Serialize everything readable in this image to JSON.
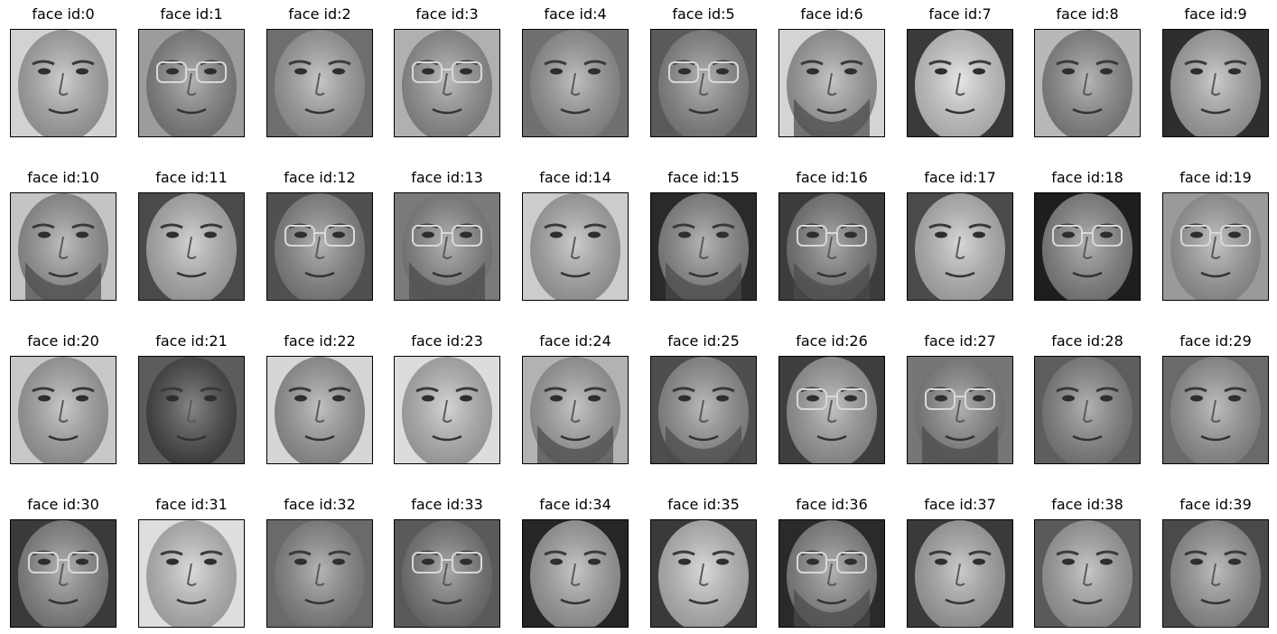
{
  "faces": [
    {
      "title": "face id:0",
      "tone": "#b4b4b4",
      "bg": "#d2d2d2",
      "glasses": false,
      "beard": false
    },
    {
      "title": "face id:1",
      "tone": "#8a8a8a",
      "bg": "#9c9c9c",
      "glasses": true,
      "beard": false
    },
    {
      "title": "face id:2",
      "tone": "#a8a8a8",
      "bg": "#6e6e6e",
      "glasses": false,
      "beard": false
    },
    {
      "title": "face id:3",
      "tone": "#9a9a9a",
      "bg": "#b0b0b0",
      "glasses": true,
      "beard": false
    },
    {
      "title": "face id:4",
      "tone": "#9e9e9e",
      "bg": "#707070",
      "glasses": false,
      "beard": false
    },
    {
      "title": "face id:5",
      "tone": "#8e8e8e",
      "bg": "#5a5a5a",
      "glasses": true,
      "beard": false
    },
    {
      "title": "face id:6",
      "tone": "#a6a6a6",
      "bg": "#d4d4d4",
      "glasses": false,
      "beard": true
    },
    {
      "title": "face id:7",
      "tone": "#d8d8d8",
      "bg": "#3a3a3a",
      "glasses": false,
      "beard": false
    },
    {
      "title": "face id:8",
      "tone": "#909090",
      "bg": "#b8b8b8",
      "glasses": false,
      "beard": false
    },
    {
      "title": "face id:9",
      "tone": "#b0b0b0",
      "bg": "#2e2e2e",
      "glasses": false,
      "beard": false
    },
    {
      "title": "face id:10",
      "tone": "#9c9c9c",
      "bg": "#c4c4c4",
      "glasses": false,
      "beard": true
    },
    {
      "title": "face id:11",
      "tone": "#bcbcbc",
      "bg": "#4a4a4a",
      "glasses": false,
      "beard": false
    },
    {
      "title": "face id:12",
      "tone": "#8c8c8c",
      "bg": "#505050",
      "glasses": true,
      "beard": false
    },
    {
      "title": "face id:13",
      "tone": "#8a8a8a",
      "bg": "#7a7a7a",
      "glasses": true,
      "beard": true
    },
    {
      "title": "face id:14",
      "tone": "#b2b2b2",
      "bg": "#cccccc",
      "glasses": false,
      "beard": false
    },
    {
      "title": "face id:15",
      "tone": "#8e8e8e",
      "bg": "#2a2a2a",
      "glasses": false,
      "beard": true
    },
    {
      "title": "face id:16",
      "tone": "#7e7e7e",
      "bg": "#3c3c3c",
      "glasses": true,
      "beard": true
    },
    {
      "title": "face id:17",
      "tone": "#c2c2c2",
      "bg": "#4a4a4a",
      "glasses": false,
      "beard": false
    },
    {
      "title": "face id:18",
      "tone": "#8a8a8a",
      "bg": "#1e1e1e",
      "glasses": true,
      "beard": false
    },
    {
      "title": "face id:19",
      "tone": "#a4a4a4",
      "bg": "#9a9a9a",
      "glasses": true,
      "beard": false
    },
    {
      "title": "face id:20",
      "tone": "#acacac",
      "bg": "#c8c8c8",
      "glasses": false,
      "beard": false
    },
    {
      "title": "face id:21",
      "tone": "#454545",
      "bg": "#5c5c5c",
      "glasses": false,
      "beard": false
    },
    {
      "title": "face id:22",
      "tone": "#a0a0a0",
      "bg": "#d6d6d6",
      "glasses": false,
      "beard": false
    },
    {
      "title": "face id:23",
      "tone": "#bebebe",
      "bg": "#dcdcdc",
      "glasses": false,
      "beard": false
    },
    {
      "title": "face id:24",
      "tone": "#a6a6a6",
      "bg": "#b2b2b2",
      "glasses": false,
      "beard": true
    },
    {
      "title": "face id:25",
      "tone": "#969696",
      "bg": "#4e4e4e",
      "glasses": false,
      "beard": true
    },
    {
      "title": "face id:26",
      "tone": "#a2a2a2",
      "bg": "#3e3e3e",
      "glasses": true,
      "beard": false
    },
    {
      "title": "face id:27",
      "tone": "#888888",
      "bg": "#767676",
      "glasses": true,
      "beard": true
    },
    {
      "title": "face id:28",
      "tone": "#8a8a8a",
      "bg": "#5e5e5e",
      "glasses": false,
      "beard": false
    },
    {
      "title": "face id:29",
      "tone": "#9c9c9c",
      "bg": "#6a6a6a",
      "glasses": false,
      "beard": false
    },
    {
      "title": "face id:30",
      "tone": "#8c8c8c",
      "bg": "#3a3a3a",
      "glasses": true,
      "beard": false
    },
    {
      "title": "face id:31",
      "tone": "#c8c8c8",
      "bg": "#dedede",
      "glasses": false,
      "beard": false
    },
    {
      "title": "face id:32",
      "tone": "#8e8e8e",
      "bg": "#6a6a6a",
      "glasses": false,
      "beard": false
    },
    {
      "title": "face id:33",
      "tone": "#7c7c7c",
      "bg": "#5a5a5a",
      "glasses": true,
      "beard": false
    },
    {
      "title": "face id:34",
      "tone": "#a8a8a8",
      "bg": "#262626",
      "glasses": false,
      "beard": false
    },
    {
      "title": "face id:35",
      "tone": "#c6c6c6",
      "bg": "#3a3a3a",
      "glasses": false,
      "beard": false
    },
    {
      "title": "face id:36",
      "tone": "#8a8a8a",
      "bg": "#2a2a2a",
      "glasses": true,
      "beard": true
    },
    {
      "title": "face id:37",
      "tone": "#b0b0b0",
      "bg": "#3a3a3a",
      "glasses": false,
      "beard": false
    },
    {
      "title": "face id:38",
      "tone": "#aaaaaa",
      "bg": "#5a5a5a",
      "glasses": false,
      "beard": false
    },
    {
      "title": "face id:39",
      "tone": "#9a9a9a",
      "bg": "#4a4a4a",
      "glasses": false,
      "beard": false
    }
  ]
}
